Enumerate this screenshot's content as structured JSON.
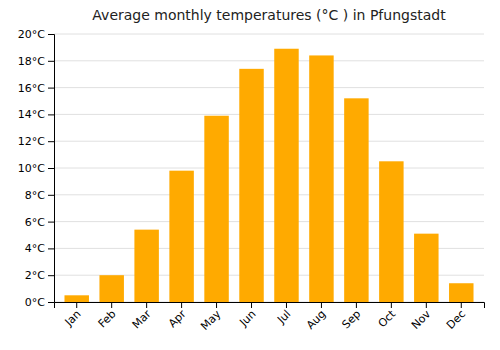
{
  "chart_data": {
    "type": "bar",
    "title": "Average monthly temperatures (°C ) in Pfungstadt",
    "categories": [
      "Jan",
      "Feb",
      "Mar",
      "Apr",
      "May",
      "Jun",
      "Jul",
      "Aug",
      "Sep",
      "Oct",
      "Nov",
      "Dec"
    ],
    "values": [
      0.5,
      2.0,
      5.4,
      9.8,
      13.9,
      17.4,
      18.9,
      18.4,
      15.2,
      10.5,
      5.1,
      1.4
    ],
    "color": "#FFAA00",
    "ylim": [
      0,
      20
    ],
    "yticks": [
      {
        "value": 0,
        "label": "0°C"
      },
      {
        "value": 2,
        "label": "2°C"
      },
      {
        "value": 4,
        "label": "4°C"
      },
      {
        "value": 6,
        "label": "6°C"
      },
      {
        "value": 8,
        "label": "8°C"
      },
      {
        "value": 10,
        "label": "10°C"
      },
      {
        "value": 12,
        "label": "12°C"
      },
      {
        "value": 14,
        "label": "14°C"
      },
      {
        "value": 16,
        "label": "16°C"
      },
      {
        "value": 18,
        "label": "18°C"
      },
      {
        "value": 20,
        "label": "20°C"
      }
    ],
    "grid": true
  }
}
